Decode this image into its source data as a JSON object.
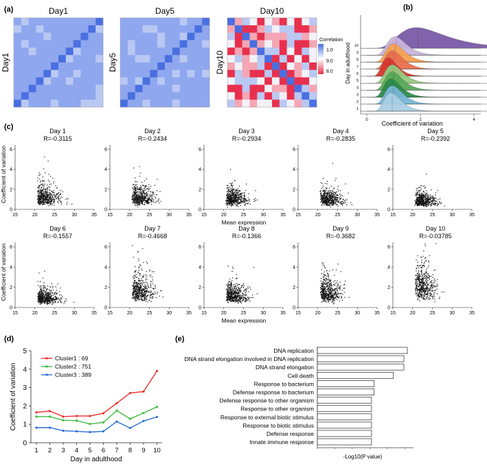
{
  "panel_labels": {
    "a": "(a)",
    "b": "(b)",
    "c": "(c)",
    "d": "(d)",
    "e": "(e)"
  },
  "chart_data": [
    {
      "id": "a",
      "type": "heatmap",
      "titles": [
        "Day1",
        "Day5",
        "Day10"
      ],
      "row_labels": [
        "Day1",
        "Day5",
        "Day10"
      ],
      "legend": {
        "title": "Correlation",
        "ticks": [
          "1.0",
          "9.0",
          "8.0"
        ]
      },
      "size": 12,
      "colors": {
        "diag": "#4a6fe0",
        "base": "#8ea7ee",
        "light": "#b9c8f3",
        "neutral": "#f2f2f7",
        "pink": "#f4a6b4",
        "red": "#e8304e"
      }
    },
    {
      "id": "b",
      "type": "area",
      "title": "",
      "xlabel": "Coefficient of variation",
      "ylabel": "Day in adulthood",
      "x_ticks": [
        "0",
        "2",
        "4"
      ],
      "days": [
        "1",
        "2",
        "3",
        "4",
        "5",
        "6",
        "7",
        "8",
        "9",
        "10"
      ],
      "peaks": [
        0.95,
        1.0,
        0.95,
        1.0,
        1.0,
        0.85,
        1.0,
        1.05,
        1.1,
        1.9
      ],
      "colors": [
        "#a9cde3",
        "#78b6d6",
        "#2b8a4a",
        "#57a85a",
        "#93c97d",
        "#d7362e",
        "#e8704f",
        "#f5a052",
        "#c9b3dc",
        "#7a5aa8"
      ]
    },
    {
      "id": "c",
      "type": "scatter",
      "xlabel": "Mean expression",
      "ylabel": "Coefficient of variation",
      "x_ticks": [
        "15",
        "20",
        "25",
        "30",
        "35"
      ],
      "y_ticks": [
        "0",
        "2",
        "4",
        "6"
      ],
      "xlim": [
        15,
        35
      ],
      "ylim": [
        0,
        7
      ],
      "panels": [
        {
          "title": "Day 1",
          "r": "R=-0.3115",
          "cv": 1.3
        },
        {
          "title": "Day 2",
          "r": "R=-0.2434",
          "cv": 1.3
        },
        {
          "title": "Day 3",
          "r": "R=-0.2934",
          "cv": 1.1
        },
        {
          "title": "Day 4",
          "r": "R=-0.2835",
          "cv": 1.1
        },
        {
          "title": "Day 5",
          "r": "R=-0.2392",
          "cv": 0.9
        },
        {
          "title": "Day 6",
          "r": "R=-0.1557",
          "cv": 1.0
        },
        {
          "title": "Day 7",
          "r": "R=-0.4668",
          "cv": 1.7
        },
        {
          "title": "Day 8",
          "r": "R=-0.1366",
          "cv": 1.3
        },
        {
          "title": "Day 9",
          "r": "R=-0.3682",
          "cv": 1.6
        },
        {
          "title": "Day 10",
          "r": "R=-0.03785",
          "cv": 2.2
        }
      ]
    },
    {
      "id": "d",
      "type": "line",
      "xlabel": "Day in adulthood",
      "ylabel": "Coefficient of variation",
      "x": [
        1,
        2,
        3,
        4,
        5,
        6,
        7,
        8,
        9,
        10
      ],
      "ylim": [
        0,
        5
      ],
      "y_ticks": [
        "0",
        "1",
        "2",
        "3",
        "4",
        "5"
      ],
      "series": [
        {
          "name": "Cluster1 : 69",
          "color": "#e8302a",
          "values": [
            1.65,
            1.72,
            1.42,
            1.45,
            1.45,
            1.6,
            2.15,
            2.7,
            2.78,
            3.9
          ]
        },
        {
          "name": "Cluster2 : 751",
          "color": "#3dbb3d",
          "values": [
            1.42,
            1.42,
            1.22,
            1.2,
            1.02,
            1.1,
            1.75,
            1.3,
            1.62,
            1.95
          ]
        },
        {
          "name": "Cluster3 : 389",
          "color": "#2a6fd6",
          "values": [
            0.82,
            0.82,
            0.65,
            0.62,
            0.58,
            0.62,
            1.15,
            0.8,
            1.18,
            1.4
          ]
        }
      ]
    },
    {
      "id": "e",
      "type": "bar",
      "xlabel": "-Log10(P value)",
      "categories": [
        "DNA replication",
        "DNA strand elongation involved in DNA replication",
        "DNA strand elongation",
        "Cell death",
        "Response to bacterium",
        "Defense response to bacterium",
        "Defense response to other organism",
        "Response to other organism",
        "Response to external biotic stimulus",
        "Response to biotic stimulus",
        "Defense response",
        "Innate immune response"
      ],
      "values": [
        10.3,
        9.9,
        9.9,
        8.7,
        6.5,
        6.5,
        6.2,
        6.2,
        6.2,
        6.2,
        6.2,
        6.2
      ],
      "xlim": [
        0,
        11
      ]
    }
  ]
}
